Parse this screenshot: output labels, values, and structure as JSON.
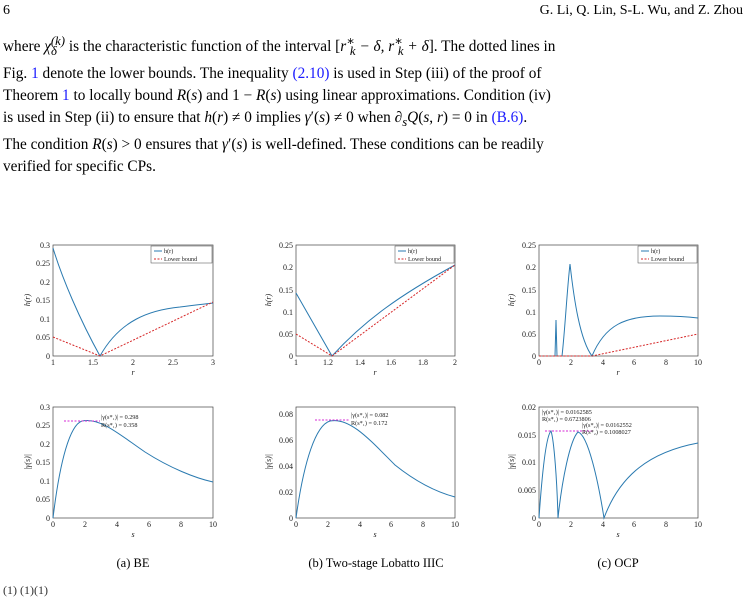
{
  "header": {
    "page_number": "6",
    "authors": "G. Li, Q. Lin, S-L. Wu, and Z. Zhou"
  },
  "paragraph": {
    "seg1": "where ",
    "seg2": " is the characteristic function of the interval [",
    "seg3": "]. The dotted lines in",
    "seg4": "Fig. ",
    "fig_ref": "1",
    "seg5": " denote the lower bounds. The inequality ",
    "eq_ref": "(2.10)",
    "seg6": " is used in Step (iii) of the proof of",
    "seg7": "Theorem ",
    "thm_ref": "1",
    "seg8": " to locally bound ",
    "seg9": " and ",
    "seg10": " using linear approximations. Condition (iv)",
    "seg11": "is used in Step (ii) to ensure that ",
    "seg12": " implies ",
    "seg13": " when ",
    "seg14": " in ",
    "b6_ref": "(B.6)",
    "seg15": ".",
    "seg16": "The condition ",
    "seg17": " ensures that ",
    "seg18": " is well-defined. These conditions can be readily",
    "seg19": "verified for specific CPs."
  },
  "figure": {
    "legend": {
      "h": "h(r)",
      "lb": "Lower bound"
    },
    "panels_top": [
      {
        "xlabel": "r",
        "ylabel": "h(r)",
        "xticks": [
          "1",
          "1.5",
          "2",
          "2.5",
          "3"
        ],
        "yticks": [
          "0",
          "0.05",
          "0.1",
          "0.15",
          "0.2",
          "0.25",
          "0.3"
        ]
      },
      {
        "xlabel": "r",
        "ylabel": "h(r)",
        "xticks": [
          "1",
          "1.2",
          "1.4",
          "1.6",
          "1.8",
          "2"
        ],
        "yticks": [
          "0",
          "0.05",
          "0.1",
          "0.15",
          "0.2",
          "0.25"
        ]
      },
      {
        "xlabel": "r",
        "ylabel": "h(r)",
        "xticks": [
          "0",
          "2",
          "4",
          "6",
          "8",
          "10"
        ],
        "yticks": [
          "0",
          "0.05",
          "0.1",
          "0.15",
          "0.2",
          "0.25"
        ]
      }
    ],
    "panels_bottom": [
      {
        "xlabel": "s",
        "ylabel": "|γ(s)|",
        "xticks": [
          "0",
          "2",
          "4",
          "6",
          "8",
          "10"
        ],
        "yticks": [
          "0",
          "0.05",
          "0.1",
          "0.15",
          "0.2",
          "0.25",
          "0.3"
        ],
        "ann": [
          "|γ(s*₁)| = 0.298",
          "R(s*₁) = 0.358"
        ]
      },
      {
        "xlabel": "s",
        "ylabel": "|γ(s)|",
        "xticks": [
          "0",
          "2",
          "4",
          "6",
          "8",
          "10"
        ],
        "yticks": [
          "0",
          "0.02",
          "0.04",
          "0.06",
          "0.08"
        ],
        "ann": [
          "|γ(s*₁)| = 0.082",
          "R(s*₁) = 0.172"
        ]
      },
      {
        "xlabel": "s",
        "ylabel": "|γ(s)|",
        "xticks": [
          "0",
          "2",
          "4",
          "6",
          "8",
          "10"
        ],
        "yticks": [
          "0",
          "0.005",
          "0.01",
          "0.015",
          "0.02"
        ],
        "ann": [
          "|γ(s*₁)| = 0.0162585",
          "R(s*₁) = 0.6723806",
          "|γ(s*₂)| = 0.0162552",
          "R(s*₂) = 0.1008027"
        ]
      }
    ],
    "captions": [
      "(a) BE",
      "(b) Two-stage Lobatto IIIC",
      "(c) OCP"
    ]
  },
  "bottom_fragment": "(1)        (1)(1)",
  "colors": {
    "curve": "#2a7ab0",
    "lower_bound": "#d62728",
    "annotation_line": "#d62ad6",
    "link": "#1a1aff"
  }
}
